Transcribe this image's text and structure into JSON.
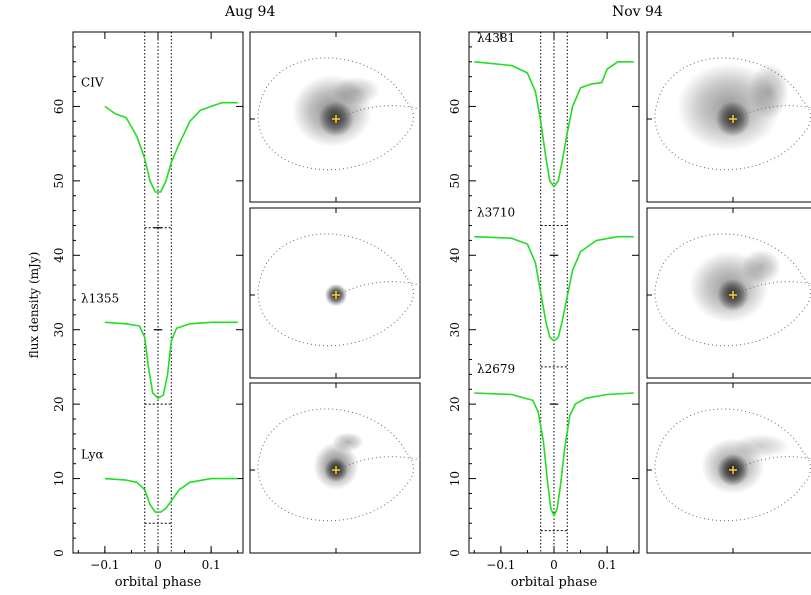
{
  "headers": [
    "Aug 94",
    "Nov 94"
  ],
  "ylabel": "flux density (mJy)",
  "xlabel": "orbital phase",
  "colors": {
    "curve": "#22dd22",
    "axes": "#000000",
    "star": "#ffcc33"
  },
  "chart_data": [
    {
      "type": "line",
      "title": "Aug 94",
      "xlabel": "orbital phase",
      "ylabel": "flux density (mJy)",
      "xlim": [
        -0.16,
        0.16
      ],
      "ylim": [
        0,
        70
      ],
      "xticks": [
        -0.1,
        0,
        0.1
      ],
      "xtick_labels": [
        "−0.1",
        "0",
        "0.1"
      ],
      "yticks": [
        0,
        10,
        20,
        30,
        40,
        50,
        60
      ],
      "vlines_dotted": [
        -0.025,
        0,
        0.025
      ],
      "series": [
        {
          "name": "CIV",
          "label": "CIV",
          "x": [
            -0.1,
            -0.08,
            -0.06,
            -0.04,
            -0.025,
            -0.015,
            -0.005,
            0.005,
            0.015,
            0.025,
            0.04,
            0.06,
            0.08,
            0.1,
            0.12,
            0.15
          ],
          "y": [
            60,
            59,
            58.5,
            56,
            53,
            50,
            48.5,
            48.5,
            50,
            52.5,
            55,
            58,
            59.5,
            60,
            60.5,
            60.5
          ],
          "baseline": 43.7,
          "mid_tick": 43.7
        },
        {
          "name": "λ1355",
          "label": "λ1355",
          "x": [
            -0.1,
            -0.06,
            -0.035,
            -0.025,
            -0.018,
            -0.01,
            0,
            0.01,
            0.018,
            0.025,
            0.035,
            0.06,
            0.1,
            0.15
          ],
          "y": [
            31,
            30.8,
            30.5,
            29,
            25,
            21.5,
            20.8,
            21.2,
            24,
            28.5,
            30.2,
            30.8,
            31,
            31
          ],
          "baseline": 20,
          "mid_tick": 30
        },
        {
          "name": "Lyα",
          "label": "Lyα",
          "x": [
            -0.1,
            -0.06,
            -0.04,
            -0.025,
            -0.015,
            -0.005,
            0.005,
            0.015,
            0.025,
            0.04,
            0.06,
            0.1,
            0.15
          ],
          "y": [
            10,
            9.8,
            9.5,
            8.5,
            6.5,
            5.5,
            5.5,
            6,
            7,
            8.5,
            9.5,
            10,
            10
          ],
          "baseline": 4,
          "mid_tick": null
        }
      ]
    },
    {
      "type": "line",
      "title": "Nov 94",
      "xlabel": "orbital phase",
      "ylabel": "flux density (mJy)",
      "xlim": [
        -0.16,
        0.16
      ],
      "ylim": [
        0,
        70
      ],
      "xticks": [
        -0.1,
        0,
        0.1
      ],
      "xtick_labels": [
        "−0.1",
        "0",
        "0.1"
      ],
      "yticks": [
        0,
        10,
        20,
        30,
        40,
        50,
        60
      ],
      "vlines_dotted": [
        -0.025,
        0,
        0.025
      ],
      "series": [
        {
          "name": "λ4381",
          "label": "λ4381",
          "x": [
            -0.15,
            -0.08,
            -0.05,
            -0.035,
            -0.025,
            -0.015,
            -0.008,
            0,
            0.008,
            0.015,
            0.025,
            0.035,
            0.05,
            0.07,
            0.09,
            0.1,
            0.12,
            0.15
          ],
          "y": [
            66,
            65.5,
            64.5,
            62,
            58,
            53,
            50,
            49.2,
            50,
            52.5,
            56.5,
            60,
            62.5,
            63,
            63.2,
            65,
            66,
            66
          ],
          "baseline": 44,
          "mid_tick": null
        },
        {
          "name": "λ3710",
          "label": "λ3710",
          "x": [
            -0.15,
            -0.08,
            -0.05,
            -0.035,
            -0.025,
            -0.015,
            -0.008,
            0,
            0.008,
            0.015,
            0.025,
            0.035,
            0.05,
            0.08,
            0.12,
            0.15
          ],
          "y": [
            42.5,
            42.3,
            41.5,
            39,
            35,
            31,
            29,
            28.5,
            29,
            31,
            34.5,
            38,
            40.5,
            42,
            42.5,
            42.5
          ],
          "baseline": 25,
          "mid_tick": 40
        },
        {
          "name": "λ2679",
          "label": "λ2679",
          "x": [
            -0.15,
            -0.08,
            -0.04,
            -0.03,
            -0.02,
            -0.012,
            -0.006,
            0,
            0.006,
            0.012,
            0.02,
            0.03,
            0.04,
            0.06,
            0.1,
            0.15
          ],
          "y": [
            21.5,
            21.3,
            20.5,
            19,
            15,
            9.5,
            6,
            5,
            6,
            9,
            14,
            18.5,
            20,
            20.8,
            21.3,
            21.5
          ],
          "baseline": 3,
          "mid_tick": 20
        }
      ]
    }
  ],
  "maps": [
    {
      "column": "Aug 94",
      "row": 1,
      "blobs": [
        {
          "dx": -0.05,
          "dy": -0.1,
          "rx": 0.5,
          "ry": 0.45,
          "op": 0.45
        },
        {
          "dx": 0.25,
          "dy": -0.35,
          "rx": 0.3,
          "ry": 0.18,
          "op": 0.25
        },
        {
          "dx": 0,
          "dy": 0,
          "rx": 0.22,
          "ry": 0.22,
          "op": 0.7
        }
      ]
    },
    {
      "column": "Aug 94",
      "row": 2,
      "blobs": [
        {
          "dx": 0,
          "dy": 0,
          "rx": 0.14,
          "ry": 0.14,
          "op": 0.9
        }
      ]
    },
    {
      "column": "Aug 94",
      "row": 3,
      "blobs": [
        {
          "dx": 0,
          "dy": -0.05,
          "rx": 0.28,
          "ry": 0.3,
          "op": 0.5
        },
        {
          "dx": 0.15,
          "dy": -0.35,
          "rx": 0.2,
          "ry": 0.12,
          "op": 0.3
        },
        {
          "dx": 0,
          "dy": 0,
          "rx": 0.15,
          "ry": 0.15,
          "op": 0.75
        }
      ]
    },
    {
      "column": "Nov 94",
      "row": 1,
      "blobs": [
        {
          "dx": -0.05,
          "dy": -0.15,
          "rx": 0.65,
          "ry": 0.55,
          "op": 0.4
        },
        {
          "dx": 0.45,
          "dy": -0.35,
          "rx": 0.25,
          "ry": 0.35,
          "op": 0.3
        },
        {
          "dx": 0,
          "dy": 0,
          "rx": 0.22,
          "ry": 0.22,
          "op": 0.75
        }
      ]
    },
    {
      "column": "Nov 94",
      "row": 2,
      "blobs": [
        {
          "dx": -0.05,
          "dy": -0.1,
          "rx": 0.5,
          "ry": 0.45,
          "op": 0.4
        },
        {
          "dx": 0.35,
          "dy": -0.35,
          "rx": 0.25,
          "ry": 0.22,
          "op": 0.3
        },
        {
          "dx": 0,
          "dy": 0,
          "rx": 0.2,
          "ry": 0.2,
          "op": 0.75
        }
      ]
    },
    {
      "column": "Nov 94",
      "row": 3,
      "blobs": [
        {
          "dx": 0,
          "dy": -0.05,
          "rx": 0.4,
          "ry": 0.35,
          "op": 0.4
        },
        {
          "dx": 0.35,
          "dy": -0.3,
          "rx": 0.35,
          "ry": 0.15,
          "op": 0.2
        },
        {
          "dx": 0,
          "dy": 0,
          "rx": 0.2,
          "ry": 0.2,
          "op": 0.85
        }
      ]
    }
  ]
}
